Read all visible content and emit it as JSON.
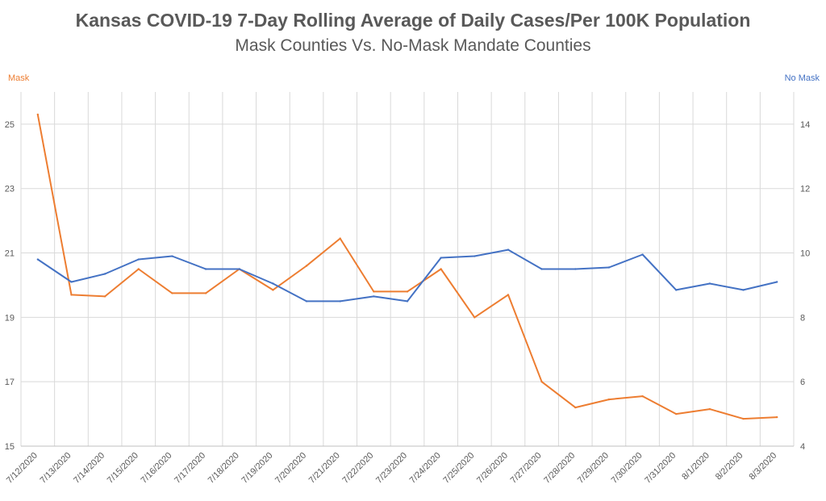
{
  "chart_data": {
    "type": "line",
    "title": "Kansas COVID-19 7-Day Rolling Average of Daily Cases/Per 100K Population",
    "subtitle": "Mask Counties Vs. No-Mask Mandate Counties",
    "left_axis_title": "Mask",
    "right_axis_title": "No Mask",
    "categories": [
      "7/12/2020",
      "7/13/2020",
      "7/14/2020",
      "7/15/2020",
      "7/16/2020",
      "7/17/2020",
      "7/18/2020",
      "7/19/2020",
      "7/20/2020",
      "7/21/2020",
      "7/22/2020",
      "7/23/2020",
      "7/24/2020",
      "7/25/2020",
      "7/26/2020",
      "7/27/2020",
      "7/28/2020",
      "7/29/2020",
      "7/30/2020",
      "7/31/2020",
      "8/1/2020",
      "8/2/2020",
      "8/3/2020"
    ],
    "y_left": {
      "min": 15,
      "max": 26,
      "ticks": [
        15,
        17,
        19,
        21,
        23,
        25
      ]
    },
    "y_right": {
      "min": 4,
      "max": 15,
      "ticks": [
        4,
        6,
        8,
        10,
        12,
        14
      ]
    },
    "grid": true,
    "series": [
      {
        "name": "Mask",
        "axis": "left",
        "color": "#ED7D31",
        "values": [
          25.3,
          19.7,
          19.65,
          20.5,
          19.75,
          19.75,
          20.5,
          19.85,
          20.6,
          21.45,
          19.8,
          19.8,
          20.5,
          19.0,
          19.7,
          17.0,
          16.2,
          16.45,
          16.55,
          16.0,
          16.15,
          15.85,
          15.9
        ]
      },
      {
        "name": "No Mask",
        "axis": "right",
        "color": "#4472C4",
        "values": [
          9.8,
          9.1,
          9.35,
          9.8,
          9.9,
          9.5,
          9.5,
          9.05,
          8.5,
          8.5,
          8.65,
          8.5,
          9.85,
          9.9,
          10.1,
          9.5,
          9.5,
          9.55,
          9.95,
          8.85,
          9.05,
          8.85,
          9.1
        ]
      }
    ]
  }
}
